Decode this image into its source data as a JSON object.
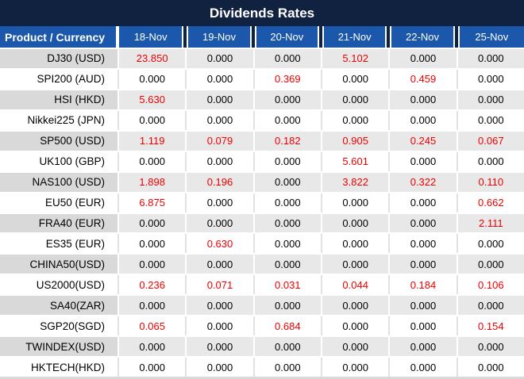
{
  "title": "Dividends Rates",
  "colors": {
    "title_bar_bg": "#112240",
    "header_bg": "#1b58ab",
    "header_text": "#ffffff",
    "red_value": "#ee0000",
    "black_value": "#000000",
    "gray_row_product_bg": "#d9d9d9",
    "gray_row_value_bg": "#e8e8e8",
    "white_row_bg": "#ffffff",
    "separator_white": "#ffffff",
    "separator_light": "#e2e2e2",
    "bottom_strip": "#d9d9d9"
  },
  "table": {
    "product_header": "Product / Currency",
    "date_headers": [
      "18-Nov",
      "19-Nov",
      "20-Nov",
      "21-Nov",
      "22-Nov",
      "25-Nov"
    ],
    "rows": [
      {
        "product": "DJ30 (USD)",
        "values": [
          "23.850",
          "0.000",
          "0.000",
          "5.102",
          "0.000",
          "0.000"
        ],
        "red": [
          true,
          false,
          false,
          true,
          false,
          false
        ]
      },
      {
        "product": "SPI200 (AUD)",
        "values": [
          "0.000",
          "0.000",
          "0.369",
          "0.000",
          "0.459",
          "0.000"
        ],
        "red": [
          false,
          false,
          true,
          false,
          true,
          false
        ]
      },
      {
        "product": "HSI (HKD)",
        "values": [
          "5.630",
          "0.000",
          "0.000",
          "0.000",
          "0.000",
          "0.000"
        ],
        "red": [
          true,
          false,
          false,
          false,
          false,
          false
        ]
      },
      {
        "product": "Nikkei225 (JPN)",
        "values": [
          "0.000",
          "0.000",
          "0.000",
          "0.000",
          "0.000",
          "0.000"
        ],
        "red": [
          false,
          false,
          false,
          false,
          false,
          false
        ]
      },
      {
        "product": "SP500 (USD)",
        "values": [
          "1.119",
          "0.079",
          "0.182",
          "0.905",
          "0.245",
          "0.067"
        ],
        "red": [
          true,
          true,
          true,
          true,
          true,
          true
        ]
      },
      {
        "product": "UK100 (GBP)",
        "values": [
          "0.000",
          "0.000",
          "0.000",
          "5.601",
          "0.000",
          "0.000"
        ],
        "red": [
          false,
          false,
          false,
          true,
          false,
          false
        ]
      },
      {
        "product": "NAS100 (USD)",
        "values": [
          "1.898",
          "0.196",
          "0.000",
          "3.822",
          "0.322",
          "0.110"
        ],
        "red": [
          true,
          true,
          false,
          true,
          true,
          true
        ]
      },
      {
        "product": "EU50 (EUR)",
        "values": [
          "6.875",
          "0.000",
          "0.000",
          "0.000",
          "0.000",
          "0.662"
        ],
        "red": [
          true,
          false,
          false,
          false,
          false,
          true
        ]
      },
      {
        "product": "FRA40 (EUR)",
        "values": [
          "0.000",
          "0.000",
          "0.000",
          "0.000",
          "0.000",
          "2.111"
        ],
        "red": [
          false,
          false,
          false,
          false,
          false,
          true
        ]
      },
      {
        "product": "ES35 (EUR)",
        "values": [
          "0.000",
          "0.630",
          "0.000",
          "0.000",
          "0.000",
          "0.000"
        ],
        "red": [
          false,
          true,
          false,
          false,
          false,
          false
        ]
      },
      {
        "product": "CHINA50(USD)",
        "values": [
          "0.000",
          "0.000",
          "0.000",
          "0.000",
          "0.000",
          "0.000"
        ],
        "red": [
          false,
          false,
          false,
          false,
          false,
          false
        ]
      },
      {
        "product": "US2000(USD)",
        "values": [
          "0.236",
          "0.071",
          "0.031",
          "0.044",
          "0.184",
          "0.106"
        ],
        "red": [
          true,
          true,
          true,
          true,
          true,
          true
        ]
      },
      {
        "product": "SA40(ZAR)",
        "values": [
          "0.000",
          "0.000",
          "0.000",
          "0.000",
          "0.000",
          "0.000"
        ],
        "red": [
          false,
          false,
          false,
          false,
          false,
          false
        ]
      },
      {
        "product": "SGP20(SGD)",
        "values": [
          "0.065",
          "0.000",
          "0.684",
          "0.000",
          "0.000",
          "0.154"
        ],
        "red": [
          true,
          false,
          true,
          false,
          false,
          true
        ]
      },
      {
        "product": "TWINDEX(USD)",
        "values": [
          "0.000",
          "0.000",
          "0.000",
          "0.000",
          "0.000",
          "0.000"
        ],
        "red": [
          false,
          false,
          false,
          false,
          false,
          false
        ]
      },
      {
        "product": "HKTECH(HKD)",
        "values": [
          "0.000",
          "0.000",
          "0.000",
          "0.000",
          "0.000",
          "0.000"
        ],
        "red": [
          false,
          false,
          false,
          false,
          false,
          false
        ]
      }
    ]
  }
}
